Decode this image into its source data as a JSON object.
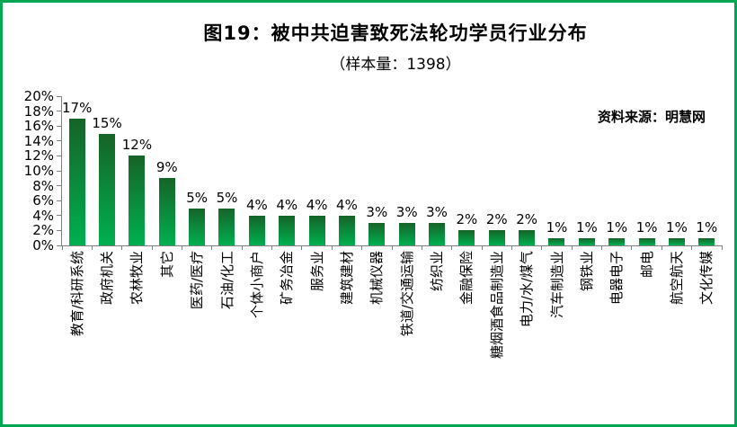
{
  "frame": {
    "border_color": "#00A651",
    "background": "#FFFFFF"
  },
  "chart_data": {
    "type": "bar",
    "title": "图19：被中共迫害致死法轮功学员行业分布",
    "subtitle": "（样本量：1398）",
    "sample_size": "1398",
    "source_note": "资料来源：明慧网",
    "categories": [
      "教育/科研系统",
      "政府机关",
      "农林牧业",
      "其它",
      "医药/医疗",
      "石油/化工",
      "个体小商户",
      "矿务冶金",
      "服务业",
      "建筑建材",
      "机械仪器",
      "铁道/交通运输",
      "纺织业",
      "金融保险",
      "糖烟酒食品制造业",
      "电力/水/煤气",
      "汽车制造业",
      "钢铁业",
      "电器电子",
      "邮电",
      "航空航天",
      "文化传媒"
    ],
    "values": [
      17,
      15,
      12,
      9,
      5,
      5,
      4,
      4,
      4,
      4,
      3,
      3,
      3,
      2,
      2,
      2,
      1,
      1,
      1,
      1,
      1,
      1
    ],
    "labels": [
      "17%",
      "15%",
      "12%",
      "9%",
      "5%",
      "5%",
      "4%",
      "4%",
      "4%",
      "4%",
      "3%",
      "3%",
      "3%",
      "2%",
      "2%",
      "2%",
      "1%",
      "1%",
      "1%",
      "1%",
      "1%",
      "1%"
    ],
    "unit": "%",
    "xlabel": "",
    "ylabel": "",
    "ylim": [
      0,
      20
    ],
    "ytick_step": 2,
    "y_tick_labels": [
      "20%",
      "18%",
      "16%",
      "14%",
      "12%",
      "10%",
      "8%",
      "6%",
      "4%",
      "2%",
      "0%"
    ],
    "grid": false,
    "legend": false,
    "bar_gradient_top": "#166328",
    "bar_gradient_bottom": "#00B050",
    "axis_color": "#808080",
    "text_color": "#000000"
  }
}
